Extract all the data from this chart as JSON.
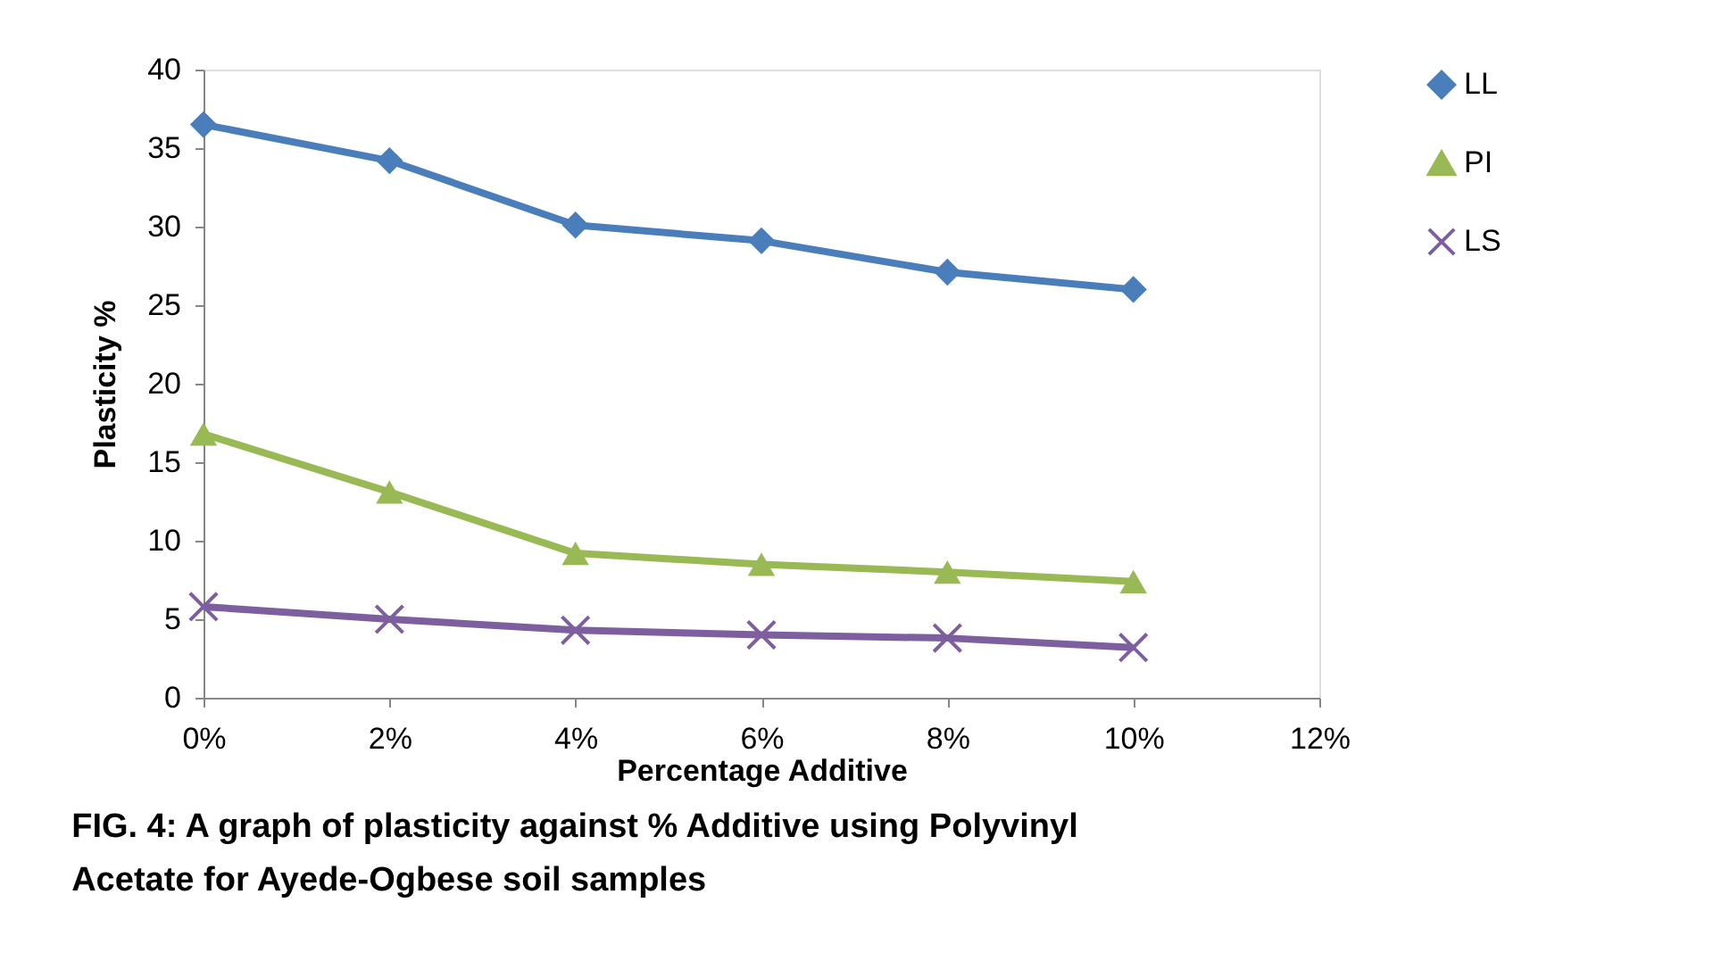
{
  "chart_data": {
    "type": "line",
    "title": "FIG. 4: A graph of plasticity against % Additive using Polyvinyl Acetate  for Ayede-Ogbese soil samples",
    "xlabel": "Percentage Additive",
    "ylabel": "Plasticity %",
    "x": [
      0,
      2,
      4,
      6,
      8,
      10
    ],
    "series": [
      {
        "name": "LL",
        "color": "#4a7ebb",
        "marker": "diamond",
        "values": [
          36.5,
          34.2,
          30.1,
          29.1,
          27.1,
          26.0
        ]
      },
      {
        "name": "PI",
        "color": "#98b954",
        "marker": "triangle",
        "values": [
          16.8,
          13.1,
          9.2,
          8.5,
          8.0,
          7.4
        ]
      },
      {
        "name": "LS",
        "color": "#7d5fa0",
        "marker": "cross",
        "values": [
          5.8,
          5.0,
          4.3,
          4.0,
          3.8,
          3.2
        ]
      }
    ],
    "xlim": [
      0,
      12
    ],
    "xticks": [
      {
        "value": 0,
        "label": "0%"
      },
      {
        "value": 2,
        "label": "2%"
      },
      {
        "value": 4,
        "label": "4%"
      },
      {
        "value": 6,
        "label": "6%"
      },
      {
        "value": 8,
        "label": "8%"
      },
      {
        "value": 10,
        "label": "10%"
      },
      {
        "value": 12,
        "label": "12%"
      }
    ],
    "ylim": [
      0,
      40
    ],
    "yticks": [
      0,
      5,
      10,
      15,
      20,
      25,
      30,
      35,
      40
    ],
    "grid": false,
    "legend": "right",
    "line_style": "solid"
  }
}
